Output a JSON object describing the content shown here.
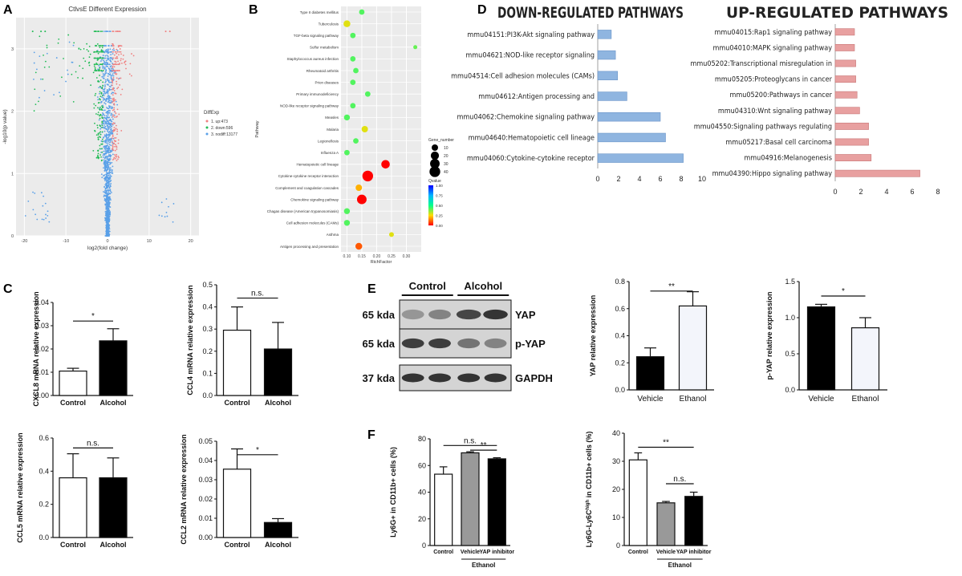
{
  "panel_labels": {
    "A": "A",
    "B": "B",
    "C": "C",
    "D": "D",
    "E": "E",
    "F": "F"
  },
  "colors": {
    "up": "#f08080",
    "down": "#22bb55",
    "nodiff": "#5aa0e8",
    "down_bar": "#8fb5e0",
    "up_bar": "#e8a0a0",
    "grey_bar": "#999999",
    "black": "#111111"
  },
  "chart_data": [
    {
      "id": "A",
      "type": "scatter",
      "title": "CtlvsE Different Expression",
      "xlabel": "log2(fold change)",
      "ylabel": "-log10(p value)",
      "xlim": [
        -22,
        22
      ],
      "ylim": [
        0,
        3.5
      ],
      "x_ticks": [
        -20,
        -10,
        0,
        10,
        20
      ],
      "y_ticks": [
        0,
        1,
        2,
        3
      ],
      "x_tick_labels": [
        "-20",
        "-10",
        "0",
        "10",
        "20"
      ],
      "y_tick_labels": [
        "0",
        "1",
        "2",
        "3"
      ],
      "legend_title": "DiffExp",
      "series": [
        {
          "name": "1. up:473",
          "color": "#f08080",
          "count": 473
        },
        {
          "name": "2. down:596",
          "color": "#22bb55",
          "count": 596
        },
        {
          "name": "3. nodiff:13177",
          "color": "#5aa0e8",
          "count": 13177
        }
      ]
    },
    {
      "id": "B",
      "type": "scatter",
      "xlabel": "RichFactor",
      "ylabel": "Pathway",
      "xlim": [
        0.08,
        0.35
      ],
      "x_ticks": [
        0.1,
        0.15,
        0.2,
        0.25,
        0.3
      ],
      "x_tick_labels": [
        "0.10",
        "0.15",
        "0.20",
        "0.25",
        "0.30"
      ],
      "size_legend_title": "Gene_number",
      "size_legend": [
        "10",
        "20",
        "30",
        "40"
      ],
      "color_legend_title": "Qvalue",
      "color_ticks": [
        "1.00",
        "0.75",
        "0.50",
        "0.25",
        "0.00"
      ],
      "pathways": [
        "Type II diabetes mellitus",
        "Tuberculosis",
        "TGF-beta signaling pathway",
        "Sulfur metabolism",
        "Staphylococcus aureus infection",
        "Rheumatoid arthritis",
        "Prion diseases",
        "Primary immunodeficiency",
        "NOD-like receptor signaling pathway",
        "Measles",
        "Malaria",
        "Legionellosis",
        "Influenza A",
        "Hematopoietic cell lineage",
        "Cytokine-cytokine receptor interaction",
        "Complement and coagulation cascades",
        "Chemokine signaling pathway",
        "Chagas disease (American trypanosomiasis)",
        "Cell adhesion molecules (CAMs)",
        "Asthma",
        "Antigen processing and presentation"
      ],
      "rich_factor": [
        0.15,
        0.1,
        0.12,
        0.33,
        0.12,
        0.13,
        0.12,
        0.17,
        0.12,
        0.1,
        0.16,
        0.13,
        0.1,
        0.23,
        0.17,
        0.14,
        0.15,
        0.1,
        0.1,
        0.25,
        0.14
      ],
      "gene_number": [
        6,
        12,
        6,
        2,
        6,
        6,
        6,
        6,
        6,
        8,
        10,
        6,
        6,
        22,
        40,
        10,
        30,
        8,
        8,
        4,
        12
      ],
      "qvalue": [
        0.42,
        0.28,
        0.42,
        0.4,
        0.42,
        0.42,
        0.42,
        0.42,
        0.42,
        0.42,
        0.28,
        0.42,
        0.42,
        0.0,
        0.0,
        0.2,
        0.0,
        0.42,
        0.42,
        0.28,
        0.1
      ]
    },
    {
      "id": "D-down",
      "type": "bar",
      "orientation": "horizontal",
      "title": "DOWN-REGULATED PATHWAYS",
      "categories": [
        "mmu04151:PI3K-Akt signaling pathway",
        "mmu04621:NOD-like receptor signaling",
        "mmu04514:Cell adhesion molecules (CAMs)",
        "mmu04612:Antigen processing and",
        "mmu04062:Chemokine signaling pathway",
        "mmu04640:Hematopoietic cell lineage",
        "mmu04060:Cytokine-cytokine receptor"
      ],
      "values": [
        1.3,
        1.7,
        1.9,
        2.8,
        6.0,
        6.5,
        8.2
      ],
      "xlim": [
        0,
        10
      ],
      "x_ticks": [
        "0",
        "2",
        "4",
        "6",
        "8",
        "10"
      ]
    },
    {
      "id": "D-up",
      "type": "bar",
      "orientation": "horizontal",
      "title": "UP-REGULATED PATHWAYS",
      "categories": [
        "mmu04015:Rap1 signaling pathway",
        "mmu04010:MAPK signaling pathway",
        "mmu05202:Transcriptional misregulation in",
        "mmu05205:Proteoglycans in cancer",
        "mmu05200:Pathways in cancer",
        "mmu04310:Wnt signaling pathway",
        "mmu04550:Signaling pathways regulating",
        "mmu05217:Basal cell carcinoma",
        "mmu04916:Melanogenesis",
        "mmu04390:Hippo signaling pathway"
      ],
      "values": [
        1.5,
        1.5,
        1.6,
        1.6,
        1.7,
        1.9,
        2.6,
        2.6,
        2.8,
        6.6
      ],
      "xlim": [
        0,
        8
      ],
      "x_ticks": [
        "0",
        "2",
        "4",
        "6",
        "8"
      ]
    },
    {
      "id": "C1",
      "type": "bar",
      "ylabel": "CXCL8 mRNA relative expression",
      "categories": [
        "Control",
        "Alcohol"
      ],
      "values": [
        0.0105,
        0.0235
      ],
      "errors": [
        0.0012,
        0.0052
      ],
      "fills": [
        "white",
        "black"
      ],
      "ylim": [
        0,
        0.04
      ],
      "y_ticks": [
        "0.00",
        "0.01",
        "0.02",
        "0.03",
        "0.04"
      ],
      "significance": "*"
    },
    {
      "id": "C2",
      "type": "bar",
      "ylabel": "CCL4 mRNA relative expression",
      "categories": [
        "Control",
        "Alcohol"
      ],
      "values": [
        0.295,
        0.21
      ],
      "errors": [
        0.105,
        0.12
      ],
      "fills": [
        "white",
        "black"
      ],
      "ylim": [
        0,
        0.5
      ],
      "y_ticks": [
        "0.0",
        "0.1",
        "0.2",
        "0.3",
        "0.4",
        "0.5"
      ],
      "significance": "n.s."
    },
    {
      "id": "C3",
      "type": "bar",
      "ylabel": "CCL5 mRNA relative expression",
      "categories": [
        "Control",
        "Alcohol"
      ],
      "values": [
        0.36,
        0.36
      ],
      "errors": [
        0.145,
        0.12
      ],
      "fills": [
        "white",
        "black"
      ],
      "ylim": [
        0,
        0.6
      ],
      "y_ticks": [
        "0.0",
        "0.2",
        "0.4",
        "0.6"
      ],
      "significance": "n.s."
    },
    {
      "id": "C4",
      "type": "bar",
      "ylabel": "CCL2 mRNA relative expression",
      "categories": [
        "Control",
        "Alcohol"
      ],
      "values": [
        0.0355,
        0.0078
      ],
      "errors": [
        0.0105,
        0.002
      ],
      "fills": [
        "white",
        "black"
      ],
      "ylim": [
        0,
        0.05
      ],
      "y_ticks": [
        "0.00",
        "0.01",
        "0.02",
        "0.03",
        "0.04",
        "0.05"
      ],
      "significance": "*"
    },
    {
      "id": "E1",
      "type": "bar",
      "ylabel": "YAP relative expression",
      "categories": [
        "Vehicle",
        "Ethanol"
      ],
      "values": [
        0.245,
        0.62
      ],
      "errors": [
        0.065,
        0.105
      ],
      "fills": [
        "black",
        "#f3f5fb"
      ],
      "ylim": [
        0,
        0.8
      ],
      "y_ticks": [
        "0.0",
        "0.2",
        "0.4",
        "0.6",
        "0.8"
      ],
      "significance": "**"
    },
    {
      "id": "E2",
      "type": "bar",
      "ylabel": "p-YAP relative expression",
      "categories": [
        "Vehicle",
        "Ethanol"
      ],
      "values": [
        1.15,
        0.86
      ],
      "errors": [
        0.035,
        0.14
      ],
      "fills": [
        "black",
        "#f3f5fb"
      ],
      "ylim": [
        0,
        1.5
      ],
      "y_ticks": [
        "0.0",
        "0.5",
        "1.0",
        "1.5"
      ],
      "significance": "*"
    },
    {
      "id": "F1",
      "type": "bar",
      "ylabel": "Ly6G+ in CD11b+ cells (%)",
      "categories": [
        "Control",
        "Vehicle",
        "YAP inhibitor"
      ],
      "group_label": "Ethanol",
      "values": [
        53.5,
        69.5,
        65.0
      ],
      "errors": [
        5.5,
        0.8,
        0.8
      ],
      "fills": [
        "white",
        "#999999",
        "black"
      ],
      "ylim": [
        0,
        80
      ],
      "y_ticks": [
        "0",
        "20",
        "40",
        "60",
        "80"
      ],
      "significance": [
        "n.s.",
        "**"
      ]
    },
    {
      "id": "F2",
      "type": "bar",
      "ylabel": "Ly6G-Ly6C",
      "ylabel_sup": "high",
      "ylabel_tail": " in CD11b+ cells (%)",
      "categories": [
        "Control",
        "Vehicle",
        "YAP inhibitor"
      ],
      "group_label": "Ethanol",
      "values": [
        30.5,
        15.2,
        17.5
      ],
      "errors": [
        2.5,
        0.5,
        1.5
      ],
      "fills": [
        "white",
        "#999999",
        "black"
      ],
      "ylim": [
        0,
        40
      ],
      "y_ticks": [
        "0",
        "10",
        "20",
        "30",
        "40"
      ],
      "significance": [
        "**",
        "n.s."
      ]
    }
  ],
  "blot": {
    "groups": [
      "Control",
      "Alcohol"
    ],
    "rows": [
      {
        "size": "65 kda",
        "protein": "YAP"
      },
      {
        "size": "65 kda",
        "protein": "p-YAP"
      },
      {
        "size": "37 kda",
        "protein": "GAPDH"
      }
    ]
  }
}
